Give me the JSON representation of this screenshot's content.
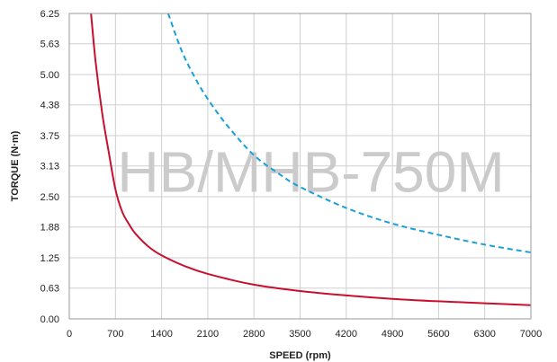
{
  "chart_data": {
    "type": "line",
    "xlabel": "SPEED (rpm)",
    "ylabel": "TORQUE (N·m)",
    "watermark": "HB/MHB-750M",
    "xlim": [
      0,
      7000
    ],
    "ylim": [
      0,
      6.25
    ],
    "x_ticks": [
      "0",
      "700",
      "1400",
      "2100",
      "2800",
      "3500",
      "4200",
      "4900",
      "5600",
      "6300",
      "7000"
    ],
    "y_ticks": [
      "0.00",
      "0.63",
      "1.25",
      "1.88",
      "2.50",
      "3.13",
      "3.75",
      "4.38",
      "5.00",
      "5.63",
      "6.25"
    ],
    "grid": true,
    "series": [
      {
        "style": "solid",
        "color": "#c8102e",
        "x": [
          330,
          400,
          500,
          600,
          700,
          800,
          900,
          1000,
          1200,
          1400,
          1750,
          2100,
          2800,
          3500,
          4200,
          4900,
          5600,
          6300,
          7000
        ],
        "y": [
          6.25,
          5.25,
          4.2,
          3.4,
          2.65,
          2.2,
          1.95,
          1.75,
          1.48,
          1.3,
          1.08,
          0.92,
          0.7,
          0.57,
          0.48,
          0.41,
          0.36,
          0.32,
          0.28
        ]
      },
      {
        "style": "dashed",
        "color": "#1aa0d8",
        "x": [
          1500,
          1700,
          1900,
          2100,
          2400,
          2800,
          3200,
          3500,
          4200,
          4900,
          5600,
          6300,
          7000
        ],
        "y": [
          6.25,
          5.5,
          4.95,
          4.5,
          3.95,
          3.35,
          2.95,
          2.7,
          2.27,
          1.95,
          1.72,
          1.52,
          1.36
        ]
      }
    ]
  }
}
